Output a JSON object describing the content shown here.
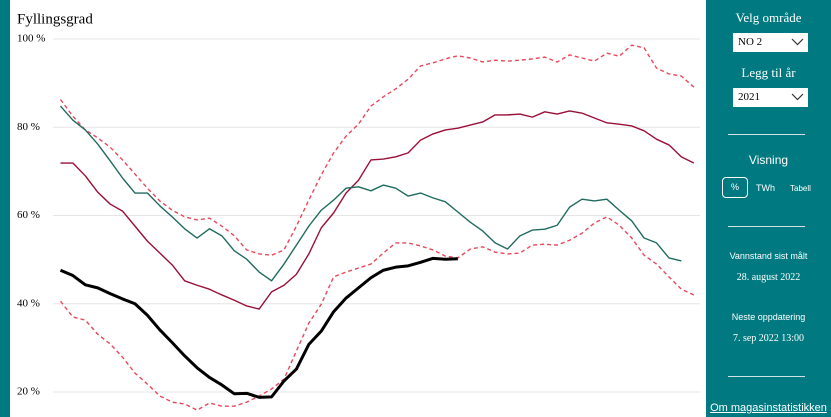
{
  "chart_data": {
    "type": "line",
    "title": "Fyllingsgrad",
    "x": [
      1,
      2,
      3,
      4,
      5,
      6,
      7,
      8,
      9,
      10,
      11,
      12,
      13,
      14,
      15,
      16,
      17,
      18,
      19,
      20,
      21,
      22,
      23,
      24,
      25,
      26,
      27,
      28,
      29,
      30,
      31,
      32,
      33,
      34,
      35,
      36,
      37,
      38,
      39,
      40,
      41,
      42,
      43,
      44,
      45,
      46,
      47,
      48,
      49,
      50,
      51,
      52
    ],
    "xlim": [
      -2.5,
      52.5
    ],
    "ylim": [
      14.5,
      102
    ],
    "yticks": [
      {
        "value": 20,
        "label": "20 %"
      },
      {
        "value": 40,
        "label": "40 %"
      },
      {
        "value": 60,
        "label": "60 %"
      },
      {
        "value": 80,
        "label": "80 %"
      },
      {
        "value": 100,
        "label": "100 %"
      }
    ],
    "grid": true,
    "series": [
      {
        "color": "#e8485c",
        "dash": true,
        "values": [
          86.3,
          82.5,
          79.4,
          77.6,
          75.5,
          72.6,
          69.4,
          66.2,
          63.3,
          61.2,
          59.7,
          59,
          59.4,
          57.6,
          55.4,
          52.2,
          51.3,
          51,
          52.2,
          57.6,
          63.5,
          69.2,
          74.2,
          78,
          80.7,
          84.8,
          86.9,
          88.7,
          90.9,
          93.9,
          94.6,
          95.5,
          96.2,
          95.7,
          94.8,
          95.2,
          95,
          95.2,
          95.5,
          95.9,
          94.8,
          96.4,
          95.7,
          95,
          96.8,
          96.1,
          98.6,
          98,
          93.4,
          92.1,
          91.6,
          89.1
        ]
      },
      {
        "color": "#e8485c",
        "dash": true,
        "values": [
          40.6,
          37,
          36.3,
          33.1,
          30.9,
          27.9,
          24.3,
          21.8,
          19.1,
          17.7,
          17.3,
          15.9,
          17.5,
          16.8,
          16.8,
          17.7,
          19.1,
          20.7,
          22.9,
          29.3,
          35.6,
          39.9,
          46.1,
          47.2,
          48.1,
          49,
          51.5,
          53.8,
          53.8,
          53.1,
          52.2,
          50.8,
          50.4,
          52.4,
          52.9,
          51.7,
          51.3,
          51.5,
          53.3,
          53.5,
          53.3,
          54.4,
          56,
          58.3,
          59.7,
          57.8,
          54.9,
          51,
          49,
          46.1,
          43.3,
          42
        ]
      },
      {
        "color": "#9a0f37",
        "dash": false,
        "values": [
          71.9,
          71.9,
          69,
          65.3,
          62.6,
          61,
          57.6,
          54.2,
          51.5,
          48.8,
          45.2,
          44.2,
          43.3,
          42,
          40.8,
          39.5,
          38.8,
          42.7,
          44.2,
          46.7,
          51.3,
          57.2,
          60.6,
          65.1,
          68,
          72.6,
          72.8,
          73.3,
          74.2,
          77.1,
          78.5,
          79.4,
          79.8,
          80.5,
          81.2,
          82.8,
          82.8,
          83,
          82.3,
          83.5,
          83,
          83.7,
          83.2,
          82.1,
          81,
          80.7,
          80.3,
          79.2,
          77.3,
          76,
          73.3,
          71.9
        ]
      },
      {
        "color": "#1f6b5f",
        "dash": false,
        "values": [
          84.8,
          81.6,
          79.4,
          76.2,
          72.4,
          68.5,
          65.1,
          65.1,
          62.2,
          59.7,
          57,
          54.9,
          57,
          55.4,
          52,
          50.1,
          47.2,
          45.2,
          49,
          53.3,
          57.6,
          61.2,
          63.5,
          66.2,
          66.5,
          65.6,
          66.9,
          66.2,
          64.4,
          65.1,
          64,
          63.1,
          60.8,
          58.5,
          56.5,
          53.8,
          52.4,
          55.4,
          56.7,
          56.9,
          57.8,
          61.9,
          63.7,
          63.3,
          63.7,
          61.2,
          58.8,
          54.9,
          53.8,
          50.4,
          49.7,
          null
        ]
      },
      {
        "color": "#000000",
        "dash": false,
        "width": 3,
        "values": [
          47.6,
          46.4,
          44.3,
          43.6,
          42.3,
          41.1,
          40,
          37.4,
          34.1,
          31.2,
          28.2,
          25.5,
          23.3,
          21.6,
          19.6,
          19.7,
          18.8,
          18.9,
          22.5,
          25.2,
          30.8,
          33.8,
          38.2,
          41.3,
          43.6,
          45.9,
          47.6,
          48.3,
          48.6,
          49.4,
          50.3,
          50.1,
          50.2,
          null,
          null,
          null,
          null,
          null,
          null,
          null,
          null,
          null,
          null,
          null,
          null,
          null,
          null,
          null,
          null,
          null,
          null,
          null
        ]
      }
    ]
  },
  "sidebar": {
    "area_label": "Velg område",
    "area_value": "NO 2",
    "year_label": "Legg til år",
    "year_value": "2021",
    "view_label": "Visning",
    "view_options": [
      "%",
      "TWh",
      "Tabell"
    ],
    "measured_label": "Vannstand sist målt",
    "measured_value": "28. august 2022",
    "next_label": "Neste oppdatering",
    "next_value": "7. sep 2022 13:00",
    "link": "Om magasinstatistikken"
  }
}
